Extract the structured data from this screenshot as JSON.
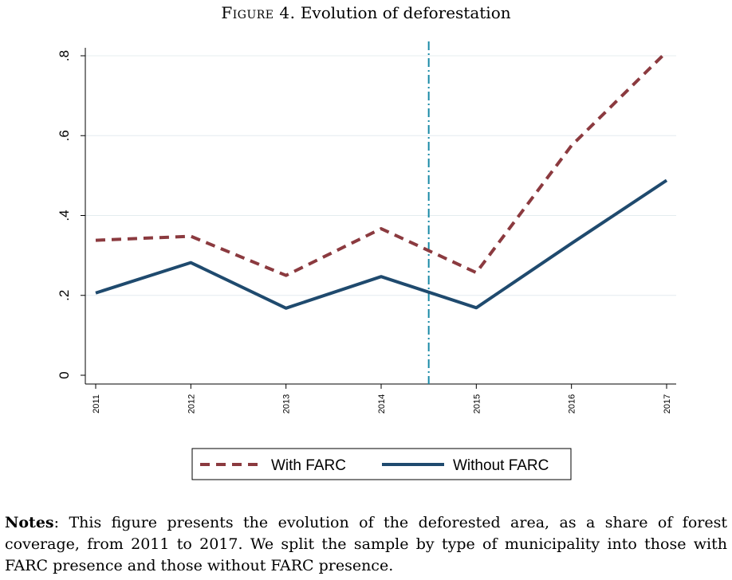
{
  "title": {
    "label": "Figure 4.",
    "text": "Evolution of deforestation"
  },
  "chart_data": {
    "type": "line",
    "x": [
      2011,
      2012,
      2013,
      2014,
      2015,
      2016,
      2017
    ],
    "categories": [
      "2011",
      "2012",
      "2013",
      "2014",
      "2015",
      "2016",
      "2017"
    ],
    "ylim": [
      0,
      0.8
    ],
    "yticks": [
      0,
      0.2,
      0.4,
      0.6,
      0.8
    ],
    "ytick_labels": [
      "0",
      ".2",
      ".4",
      ".6",
      ".8"
    ],
    "grid": true,
    "vline_x": 2014.5,
    "legend_position": "bottom",
    "xlabel": "",
    "ylabel": "",
    "series": [
      {
        "name": "With FARC",
        "values": [
          0.338,
          0.348,
          0.25,
          0.367,
          0.257,
          0.575,
          0.81
        ],
        "color": "#8b3a3f",
        "style": "dashed"
      },
      {
        "name": "Without FARC",
        "values": [
          0.206,
          0.282,
          0.168,
          0.247,
          0.169,
          0.33,
          0.488
        ],
        "color": "#1f4a6e",
        "style": "solid"
      }
    ],
    "vline_color": "#1a8aa6"
  },
  "notes": {
    "label": "Notes",
    "text": ": This figure presents the evolution of the deforested area, as a share of forest coverage, from 2011 to 2017. We split the sample by type of municipality into those with FARC presence and those without FARC presence."
  }
}
